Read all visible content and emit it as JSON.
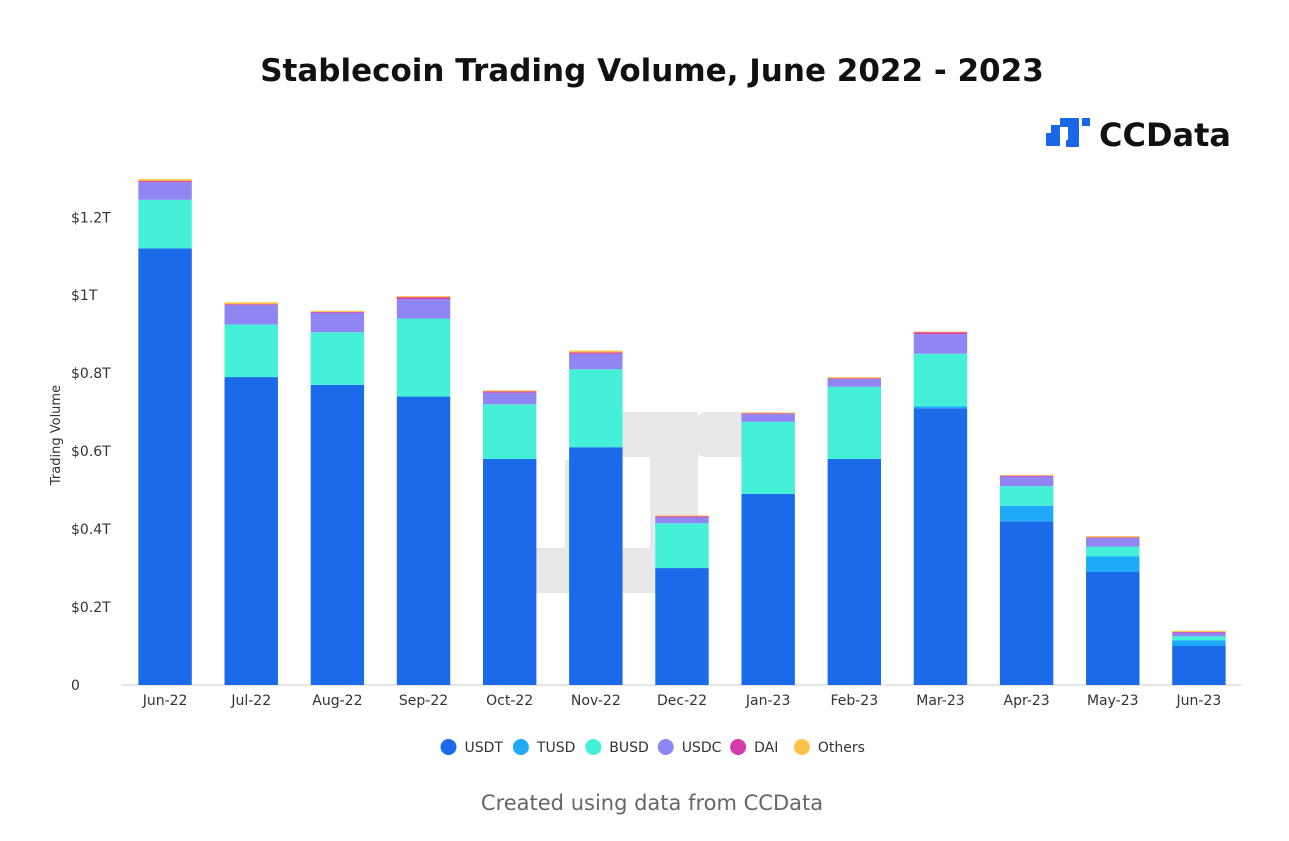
{
  "logo": {
    "text": "CCData",
    "icon": "ccdata-logo-icon",
    "color": "#1a66e8"
  },
  "footer": "Created using data from CCData",
  "chart_data": {
    "type": "bar",
    "stacked": true,
    "title": "Stablecoin Trading Volume, June 2022 - 2023",
    "xlabel": "",
    "ylabel": "Trading Volume",
    "ylim": [
      0,
      1.27
    ],
    "y_ticks": [
      0,
      0.2,
      0.4,
      0.6,
      0.8,
      1.0,
      1.2
    ],
    "y_tick_labels": [
      "0",
      "$0.2T",
      "$0.4T",
      "$0.6T",
      "$0.8T",
      "$1T",
      "$1.2T"
    ],
    "grid": false,
    "legend_position": "bottom",
    "categories": [
      "Jun-22",
      "Jul-22",
      "Aug-22",
      "Sep-22",
      "Oct-22",
      "Nov-22",
      "Dec-22",
      "Jan-23",
      "Feb-23",
      "Mar-23",
      "Apr-23",
      "May-23",
      "Jun-23"
    ],
    "series": [
      {
        "name": "USDT",
        "color": "#1a6ae9",
        "values": [
          1.12,
          0.79,
          0.77,
          0.74,
          0.58,
          0.61,
          0.3,
          0.49,
          0.58,
          0.71,
          0.42,
          0.29,
          0.1
        ]
      },
      {
        "name": "TUSD",
        "color": "#1eaaf6",
        "values": [
          0,
          0,
          0,
          0,
          0,
          0,
          0,
          0,
          0,
          0.005,
          0.04,
          0.04,
          0.015
        ]
      },
      {
        "name": "BUSD",
        "color": "#45f0d8",
        "values": [
          0.125,
          0.135,
          0.135,
          0.2,
          0.14,
          0.2,
          0.115,
          0.185,
          0.185,
          0.135,
          0.05,
          0.025,
          0.01
        ]
      },
      {
        "name": "USDC",
        "color": "#8f86f3",
        "values": [
          0.045,
          0.05,
          0.05,
          0.05,
          0.03,
          0.04,
          0.015,
          0.02,
          0.02,
          0.05,
          0.025,
          0.022,
          0.009
        ]
      },
      {
        "name": "DAI",
        "color": "#d63aa6",
        "values": [
          0.003,
          0.002,
          0.002,
          0.005,
          0.003,
          0.003,
          0.003,
          0.002,
          0.002,
          0.005,
          0.002,
          0.002,
          0.002
        ]
      },
      {
        "name": "Others",
        "color": "#ffc24a",
        "values": [
          0.005,
          0.005,
          0.003,
          0.003,
          0.003,
          0.005,
          0.002,
          0.002,
          0.003,
          0.002,
          0.002,
          0.003,
          0.003
        ]
      }
    ]
  }
}
